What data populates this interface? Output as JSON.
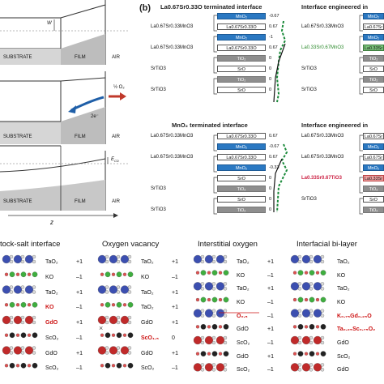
{
  "panel_a": {
    "diagrams": [
      {
        "labels": [
          "SUBSTRATE",
          "FILM",
          "AIR"
        ],
        "w_label": "W",
        "annotation": ""
      },
      {
        "labels": [
          "SUBSTRATE",
          "FILM",
          "AIR"
        ],
        "electrons": "2e⁻",
        "oxygen": "½ O₂",
        "annotation": ""
      },
      {
        "labels": [
          "SUBSTRATE",
          "FILM",
          "AIR"
        ],
        "e_label": "E",
        "e_sub": "CD"
      }
    ],
    "z_label": "z"
  },
  "panel_b": {
    "letter": "(b)",
    "groups": [
      {
        "title": "La0.67Sr0.33O terminated interface",
        "rows": [
          {
            "label": "",
            "block": "MnO₂",
            "style": "blue",
            "value": "-0.67"
          },
          {
            "label": "La0.67Sr0.33MnO3",
            "block": "La0.67Sr0.33O",
            "style": "white",
            "value": "0.67"
          },
          {
            "label": "",
            "block": "MnO₂",
            "style": "blue",
            "value": "-1"
          },
          {
            "label": "La0.67Sr0.33MnO3",
            "block": "La0.67Sr0.33O",
            "style": "white",
            "value": "0.67"
          },
          {
            "label": "",
            "block": "TiO₂",
            "style": "grey",
            "value": "0"
          },
          {
            "label": "SrTiO3",
            "block": "SrO",
            "style": "white",
            "value": "0"
          },
          {
            "label": "",
            "block": "TiO₂",
            "style": "grey",
            "value": "0"
          },
          {
            "label": "SrTiO3",
            "block": "SrO",
            "style": "white",
            "value": "0"
          }
        ]
      },
      {
        "title": "MnO₂ terminated interface",
        "rows": [
          {
            "label": "La0.67Sr0.33MnO3",
            "block": "La0.67Sr0.33O",
            "style": "white",
            "value": "0.67"
          },
          {
            "label": "",
            "block": "MnO₂",
            "style": "blue",
            "value": "-0.67"
          },
          {
            "label": "La0.67Sr0.33MnO3",
            "block": "La0.67Sr0.33O",
            "style": "white",
            "value": "0.67"
          },
          {
            "label": "",
            "block": "MnO₂",
            "style": "blue",
            "value": "-0.33"
          },
          {
            "label": "",
            "block": "SrO",
            "style": "white",
            "value": "0"
          },
          {
            "label": "SrTiO3",
            "block": "TiO₂",
            "style": "grey",
            "value": "0"
          },
          {
            "label": "",
            "block": "SrO",
            "style": "white",
            "value": "0"
          },
          {
            "label": "SrTiO3",
            "block": "TiO₂",
            "style": "grey",
            "value": "0"
          }
        ]
      }
    ],
    "engineered": [
      {
        "title": "Interface engineered in",
        "rows": [
          {
            "label": "",
            "block": "MnO₂",
            "style": "blue"
          },
          {
            "label": "La0.67Sr0.33MnO3",
            "block": "La0.67Sr",
            "style": "white"
          },
          {
            "label": "",
            "block": "MnO₂",
            "style": "blue"
          },
          {
            "label": "La0.33Sr0.67MnO3",
            "block": "La0.33Sr",
            "style": "green"
          },
          {
            "label": "",
            "block": "TiO₂",
            "style": "grey"
          },
          {
            "label": "SrTiO3",
            "block": "SrO",
            "style": "white"
          },
          {
            "label": "",
            "block": "TiO₂",
            "style": "grey"
          },
          {
            "label": "SrTiO3",
            "block": "SrO",
            "style": "white"
          }
        ]
      },
      {
        "title": "Interface engineered in",
        "rows": [
          {
            "label": "La0.67Sr0.33MnO3",
            "block": "La0.67Sr",
            "style": "white"
          },
          {
            "label": "",
            "block": "MnO₂",
            "style": "blue"
          },
          {
            "label": "La0.67Sr0.33MnO3",
            "block": "La0.67Sr",
            "style": "white"
          },
          {
            "label": "",
            "block": "MnO₂",
            "style": "blue"
          },
          {
            "label": "La0.33Sr0.67TiO3",
            "block": "La0.33Sr",
            "style": "red"
          },
          {
            "label": "",
            "block": "TiO₂",
            "style": "grey"
          },
          {
            "label": "SrTiO3",
            "block": "SrO",
            "style": "white"
          },
          {
            "label": "",
            "block": "TiO₂",
            "style": "grey"
          }
        ]
      }
    ]
  },
  "bottom": {
    "panels": [
      {
        "title": "tock-salt interface",
        "layers": [
          {
            "name": "TaO₂",
            "charge": "+1",
            "style": "normal"
          },
          {
            "name": "KO",
            "charge": "–1",
            "style": "normal"
          },
          {
            "name": "TaO₂",
            "charge": "+1",
            "style": "normal"
          },
          {
            "name": "KO",
            "charge": "–1",
            "style": "red"
          },
          {
            "name": "GdO",
            "charge": "+1",
            "style": "red"
          },
          {
            "name": "ScO₂",
            "charge": "–1",
            "style": "normal"
          },
          {
            "name": "GdO",
            "charge": "+1",
            "style": "normal"
          },
          {
            "name": "ScO₂",
            "charge": "–1",
            "style": "normal"
          }
        ]
      },
      {
        "title": "Oxygen vacancy",
        "layers": [
          {
            "name": "TaO₂",
            "charge": "+1",
            "style": "normal"
          },
          {
            "name": "KO",
            "charge": "–1",
            "style": "normal"
          },
          {
            "name": "TaO₂",
            "charge": "+1",
            "style": "normal"
          },
          {
            "name": "TaO₂",
            "charge": "+1",
            "style": "normal"
          },
          {
            "name": "GdO",
            "charge": "+1",
            "style": "normal"
          },
          {
            "name": "ScO₁.₅",
            "charge": "0",
            "style": "red"
          },
          {
            "name": "GdO",
            "charge": "+1",
            "style": "normal"
          },
          {
            "name": "ScO₂",
            "charge": "–1",
            "style": "normal"
          }
        ]
      },
      {
        "title": "Interstitial oxygen",
        "layers": [
          {
            "name": "TaO₂",
            "charge": "+1",
            "style": "normal"
          },
          {
            "name": "KO",
            "charge": "–1",
            "style": "normal"
          },
          {
            "name": "TaO₂",
            "charge": "+1",
            "style": "normal"
          },
          {
            "name": "KO",
            "charge": "–1",
            "style": "normal"
          },
          {
            "name": "O₀.₅",
            "charge": "–1",
            "style": "red"
          },
          {
            "name": "GdO",
            "charge": "+1",
            "style": "normal"
          },
          {
            "name": "ScO₂",
            "charge": "–1",
            "style": "normal"
          },
          {
            "name": "GdO",
            "charge": "+1",
            "style": "normal"
          },
          {
            "name": "ScO₂",
            "charge": "–1",
            "style": "normal"
          }
        ]
      },
      {
        "title": "Interfacial bi-layer",
        "layers": [
          {
            "name": "TaO₂",
            "charge": "",
            "style": "normal"
          },
          {
            "name": "KO",
            "charge": "",
            "style": "normal"
          },
          {
            "name": "TaO₂",
            "charge": "",
            "style": "normal"
          },
          {
            "name": "KO",
            "charge": "",
            "style": "normal"
          },
          {
            "name": "K₀.₇₅Gd₀.₂₅O",
            "charge": "",
            "style": "red"
          },
          {
            "name": "Ta₀.₂₅Sc₀.₇₅O₂",
            "charge": "",
            "style": "red"
          },
          {
            "name": "GdO",
            "charge": "",
            "style": "normal"
          },
          {
            "name": "ScO₂",
            "charge": "",
            "style": "normal"
          },
          {
            "name": "GdO",
            "charge": "",
            "style": "normal"
          }
        ]
      }
    ]
  },
  "colors": {
    "accent_blue": "#2a78c2",
    "tio2_grey": "#8e8e8e",
    "green_line": "#1a8a3a",
    "red": "#cc1111",
    "arrow_blue": "#1f5fa8",
    "arrow_red": "#c0392b"
  }
}
